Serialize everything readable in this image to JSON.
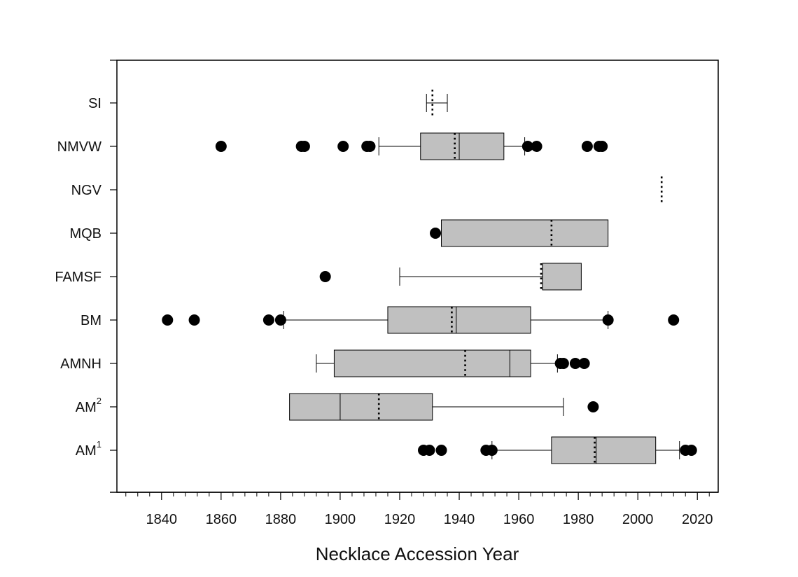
{
  "chart_data": {
    "type": "boxplot",
    "orientation": "horizontal",
    "xlabel": "Necklace Accession Year",
    "ylabel": "",
    "xlim": [
      1825,
      2027
    ],
    "xticks": [
      1840,
      1860,
      1880,
      1900,
      1920,
      1940,
      1960,
      1980,
      2000,
      2020
    ],
    "minor_tick_step": 4,
    "grid": false,
    "box_color": "#c0c0c0",
    "line_color": "#000000",
    "categories": [
      {
        "label": "SI",
        "sup": "",
        "q1": null,
        "median": null,
        "q3": null,
        "whisker_low": 1929,
        "whisker_high": 1936,
        "mean": 1931,
        "outliers": []
      },
      {
        "label": "NMVW",
        "sup": "",
        "q1": 1927,
        "median": 1940,
        "q3": 1955,
        "whisker_low": 1913,
        "whisker_high": 1962,
        "mean": 1938.5,
        "outliers": [
          1860,
          1887,
          1888,
          1901,
          1909,
          1910,
          1963,
          1966,
          1983,
          1987,
          1988
        ]
      },
      {
        "label": "NGV",
        "sup": "",
        "q1": null,
        "median": null,
        "q3": null,
        "whisker_low": null,
        "whisker_high": null,
        "mean": 2008,
        "outliers": []
      },
      {
        "label": "MQB",
        "sup": "",
        "q1": 1934,
        "median": null,
        "q3": 1990,
        "whisker_low": null,
        "whisker_high": null,
        "mean": 1971,
        "outliers": [
          1932
        ]
      },
      {
        "label": "FAMSF",
        "sup": "",
        "q1": 1968,
        "median": 1968,
        "q3": 1981,
        "whisker_low": 1920,
        "whisker_high": null,
        "mean": 1967.5,
        "outliers": [
          1895
        ]
      },
      {
        "label": "BM",
        "sup": "",
        "q1": 1916,
        "median": 1939,
        "q3": 1964,
        "whisker_low": 1881,
        "whisker_high": 1990,
        "mean": 1937.5,
        "outliers": [
          1842,
          1851,
          1876,
          1880,
          1990,
          2012
        ]
      },
      {
        "label": "AMNH",
        "sup": "",
        "q1": 1898,
        "median": 1957,
        "q3": 1964,
        "whisker_low": 1892,
        "whisker_high": 1973,
        "mean": 1942,
        "outliers": [
          1974,
          1975,
          1979,
          1982
        ]
      },
      {
        "label": "AM",
        "sup": "2",
        "q1": 1883,
        "median": 1900,
        "q3": 1931,
        "whisker_low": null,
        "whisker_high": 1975,
        "mean": 1913,
        "outliers": [
          1985
        ]
      },
      {
        "label": "AM",
        "sup": "1",
        "q1": 1971,
        "median": 1986,
        "q3": 2006,
        "whisker_low": 1951,
        "whisker_high": 2014,
        "mean": 1985.5,
        "outliers": [
          1928,
          1930,
          1934,
          1949,
          1951,
          2016,
          2018
        ]
      }
    ]
  }
}
